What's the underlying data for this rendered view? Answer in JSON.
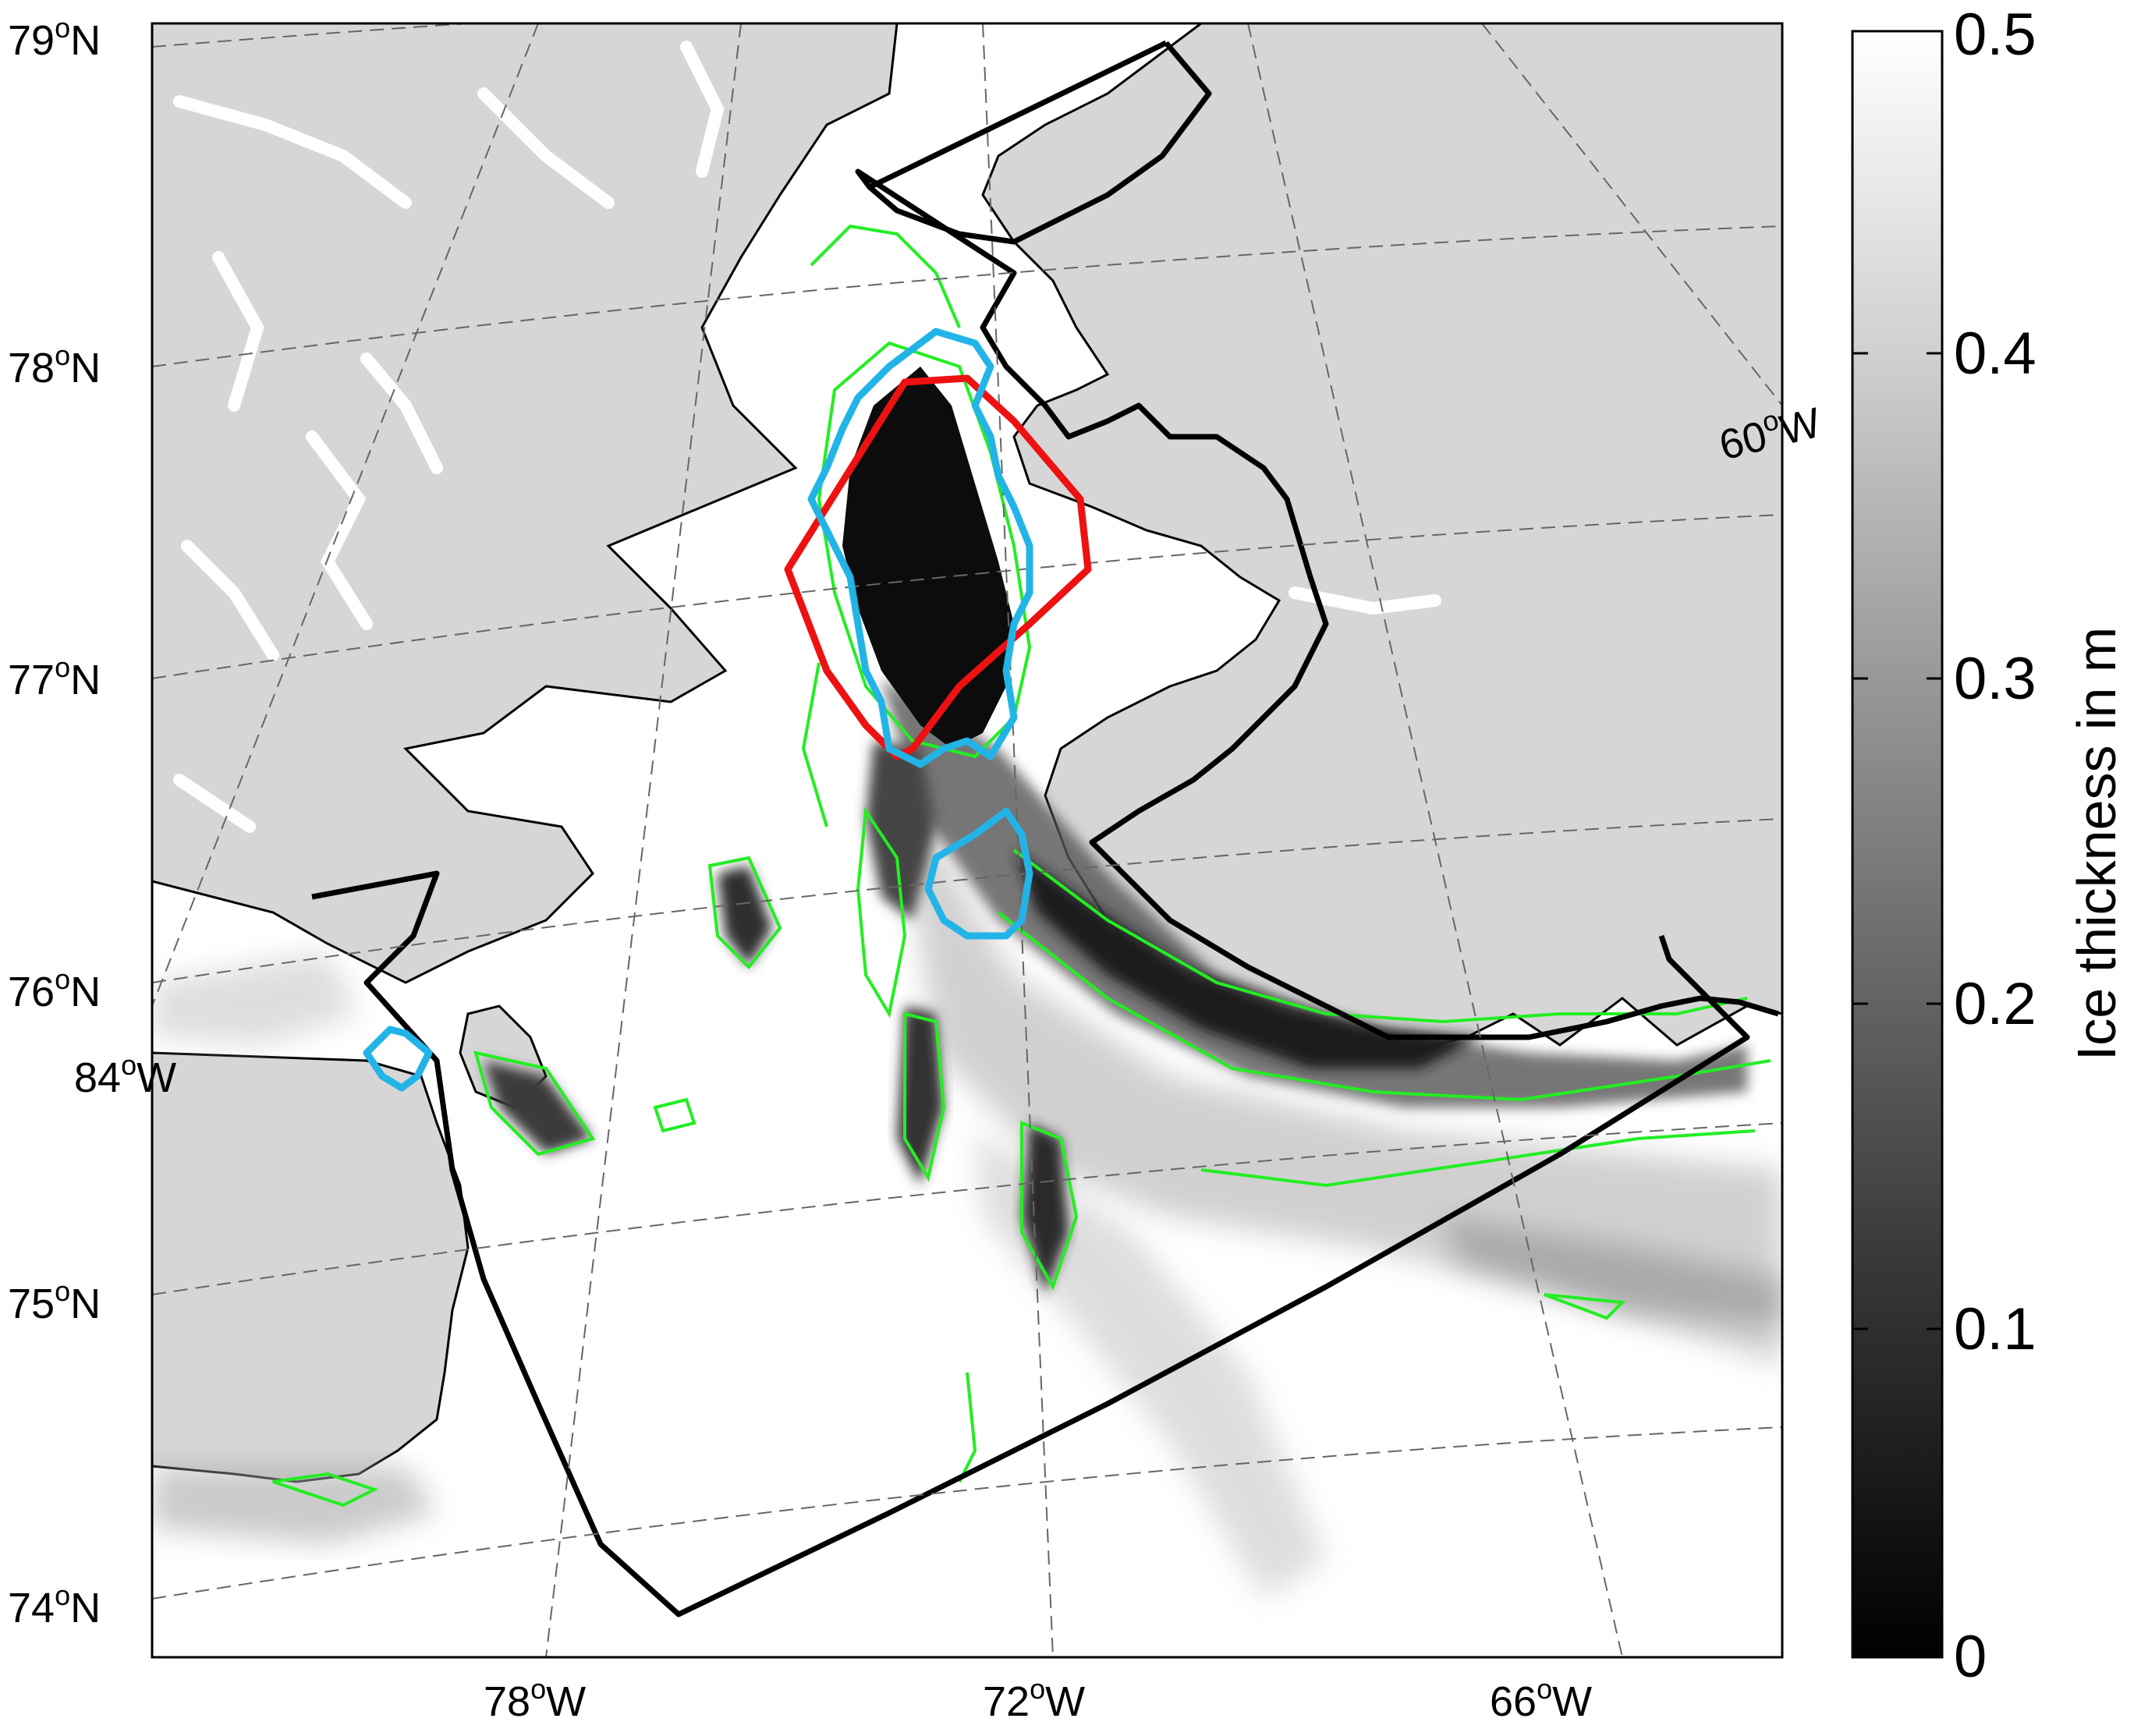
{
  "map": {
    "latitude_labels": [
      {
        "base": "79",
        "sup": "o",
        "suffix": "N"
      },
      {
        "base": "78",
        "sup": "o",
        "suffix": "N"
      },
      {
        "base": "77",
        "sup": "o",
        "suffix": "N"
      },
      {
        "base": "76",
        "sup": "o",
        "suffix": "N"
      },
      {
        "base": "75",
        "sup": "o",
        "suffix": "N"
      },
      {
        "base": "74",
        "sup": "o",
        "suffix": "N"
      }
    ],
    "longitude_labels": [
      {
        "base": "78",
        "sup": "o",
        "suffix": "W"
      },
      {
        "base": "72",
        "sup": "o",
        "suffix": "W"
      },
      {
        "base": "66",
        "sup": "o",
        "suffix": "W"
      },
      {
        "base": "84",
        "sup": "o",
        "suffix": "W"
      },
      {
        "base": "60",
        "sup": "o",
        "suffix": "W"
      }
    ],
    "colors": {
      "land": "#d6d6d6",
      "open_water": "#ffffff",
      "domain_outline": "#000000",
      "polygon_red": "#ee1111",
      "polygon_blue": "#22b4e6",
      "ice_contour": "#22ee22"
    }
  },
  "colorbar": {
    "label": "Ice thickness in m",
    "range": [
      0,
      0.5
    ],
    "colormap": "grayscale (black = 0, white = 0.5)",
    "ticks": [
      "0",
      "0.1",
      "0.2",
      "0.3",
      "0.4",
      "0.5"
    ]
  }
}
